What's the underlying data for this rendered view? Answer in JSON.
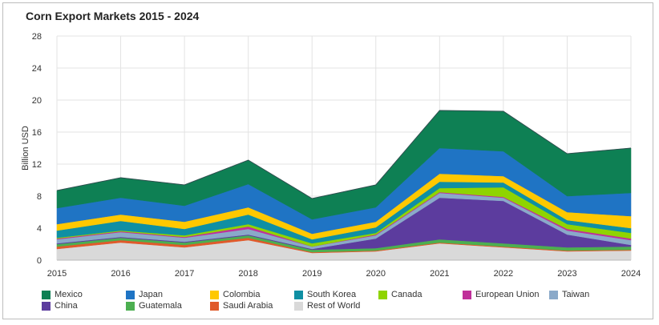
{
  "chart_data": {
    "type": "area",
    "stacked": true,
    "title": "Corn Export Markets 2015 - 2024",
    "ylabel": "Billion USD",
    "xlabel": "",
    "ylim": [
      0,
      28
    ],
    "yticks": [
      "0",
      "4",
      "8",
      "12",
      "16",
      "20",
      "24",
      "28"
    ],
    "x": [
      "2015",
      "2016",
      "2017",
      "2018",
      "2019",
      "2020",
      "2021",
      "2022",
      "2023",
      "2024"
    ],
    "grid": true,
    "legend_position": "bottom",
    "series": [
      {
        "name": "Rest of World",
        "color": "#d9d9d9",
        "values": [
          1.4,
          2.2,
          1.6,
          2.5,
          0.9,
          1.1,
          2.1,
          1.6,
          1.1,
          1.2
        ]
      },
      {
        "name": "Saudi Arabia",
        "color": "#e05a2b",
        "values": [
          0.3,
          0.3,
          0.3,
          0.3,
          0.1,
          0.1,
          0.1,
          0.1,
          0.1,
          0.1
        ]
      },
      {
        "name": "Guatemala",
        "color": "#4caf50",
        "values": [
          0.3,
          0.3,
          0.3,
          0.3,
          0.3,
          0.3,
          0.4,
          0.4,
          0.4,
          0.4
        ]
      },
      {
        "name": "China",
        "color": "#5c3c9e",
        "values": [
          0.1,
          0.1,
          0.1,
          0.1,
          0.1,
          1.2,
          5.2,
          5.3,
          1.6,
          0.2
        ]
      },
      {
        "name": "Taiwan",
        "color": "#8aa9c9",
        "values": [
          0.5,
          0.6,
          0.5,
          0.7,
          0.3,
          0.4,
          0.6,
          0.4,
          0.5,
          0.6
        ]
      },
      {
        "name": "European Union",
        "color": "#c0309a",
        "values": [
          0.1,
          0.1,
          0.1,
          0.3,
          0.0,
          0.1,
          0.1,
          0.1,
          0.2,
          0.2
        ]
      },
      {
        "name": "Canada",
        "color": "#8fd400",
        "values": [
          0.1,
          0.1,
          0.2,
          0.3,
          0.4,
          0.2,
          0.5,
          1.2,
          0.6,
          0.7
        ]
      },
      {
        "name": "South Korea",
        "color": "#0f8fa3",
        "values": [
          0.9,
          1.2,
          0.8,
          1.2,
          0.5,
          0.7,
          0.8,
          0.6,
          0.5,
          0.6
        ]
      },
      {
        "name": "Colombia",
        "color": "#ffc800",
        "values": [
          0.8,
          0.8,
          0.9,
          0.9,
          0.7,
          0.7,
          1.0,
          0.8,
          1.0,
          1.5
        ]
      },
      {
        "name": "Japan",
        "color": "#1f74c4",
        "values": [
          2.0,
          2.1,
          2.0,
          2.9,
          1.8,
          1.8,
          3.2,
          3.1,
          2.0,
          2.9
        ]
      },
      {
        "name": "Mexico",
        "color": "#0e8054",
        "values": [
          2.2,
          2.5,
          2.6,
          3.0,
          2.6,
          2.8,
          4.7,
          5.0,
          5.3,
          5.6
        ]
      }
    ],
    "legend_order": [
      "Mexico",
      "Japan",
      "Colombia",
      "South Korea",
      "Canada",
      "European Union",
      "Taiwan",
      "China",
      "Guatemala",
      "Saudi Arabia",
      "Rest of World"
    ]
  }
}
